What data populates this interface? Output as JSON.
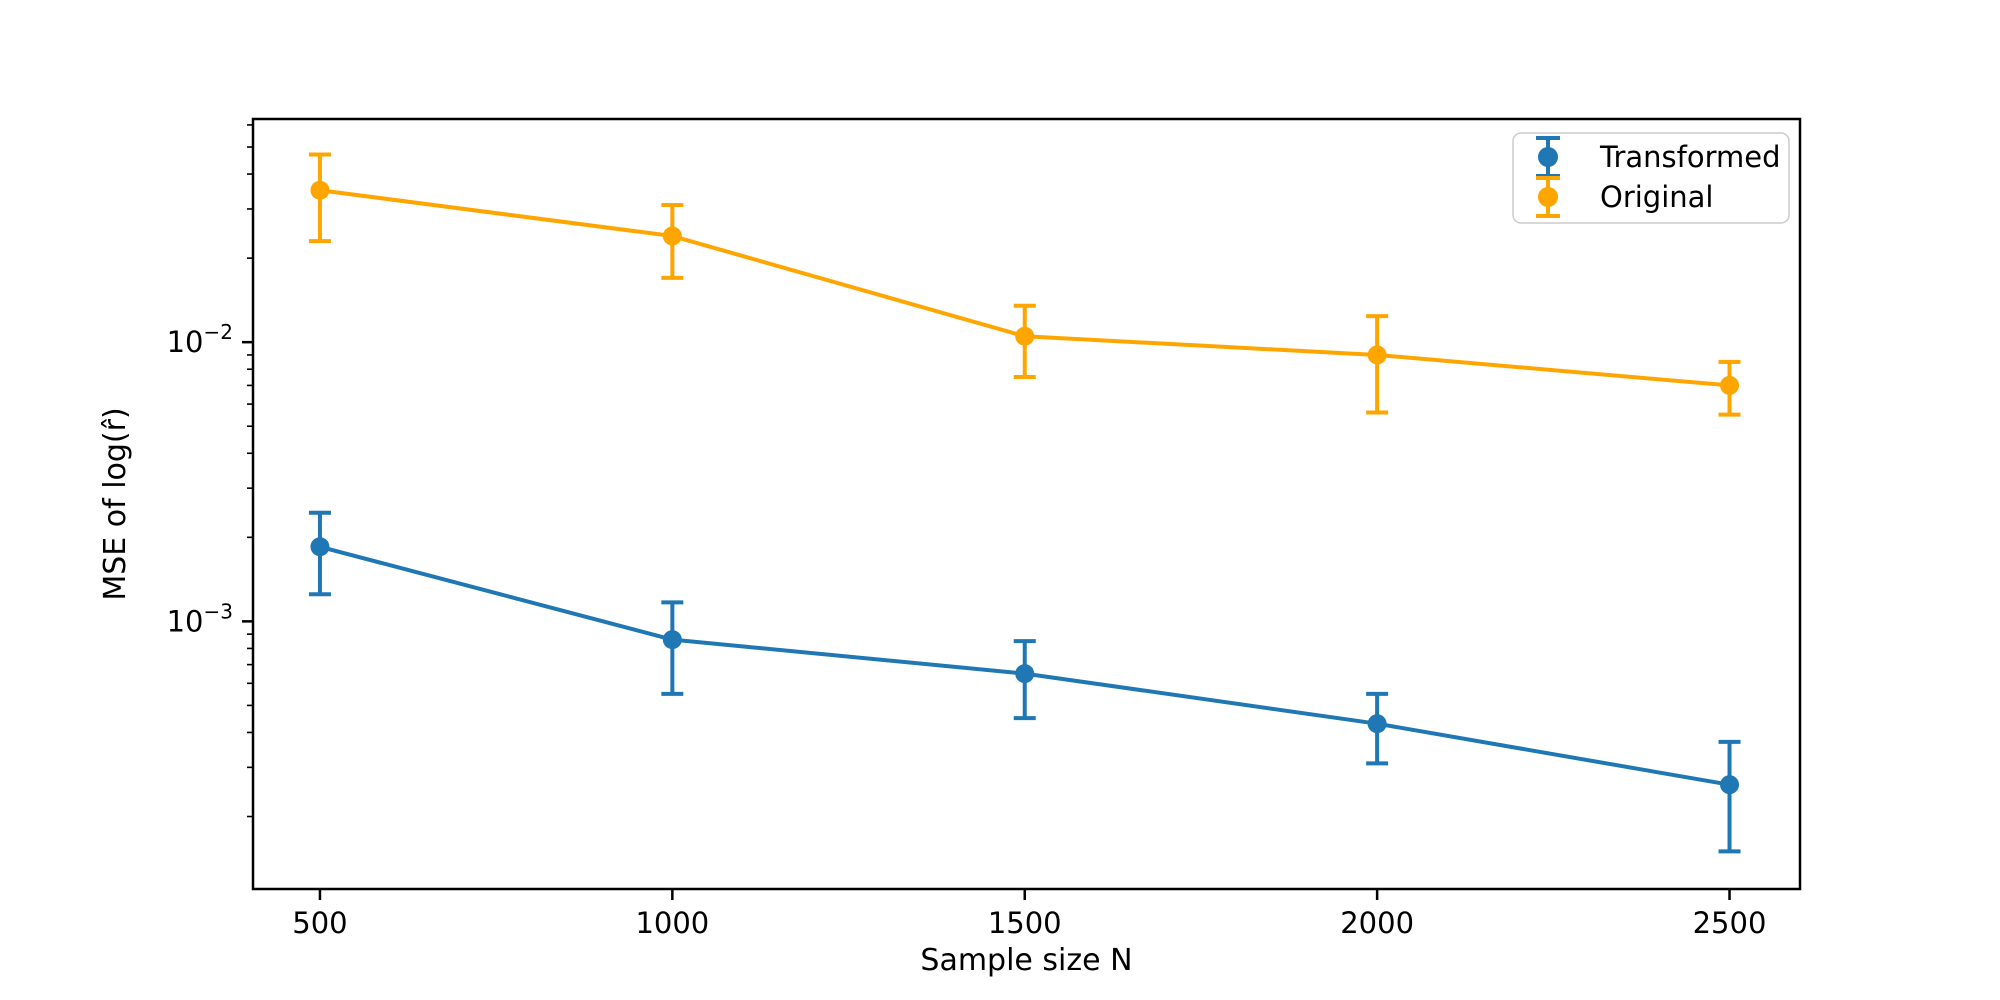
{
  "chart_data": {
    "type": "line",
    "title": "",
    "xlabel": "Sample size N",
    "ylabel": "MSE of log(r̂)",
    "yscale": "log",
    "grid": false,
    "legend_position": "upper right",
    "x": [
      500,
      1000,
      1500,
      2000,
      2500
    ],
    "xticks": [
      {
        "value": 500,
        "label": "500"
      },
      {
        "value": 1000,
        "label": "1000"
      },
      {
        "value": 1500,
        "label": "1500"
      },
      {
        "value": 2000,
        "label": "2000"
      },
      {
        "value": 2500,
        "label": "2500"
      }
    ],
    "yticks": [
      {
        "value": 0.01,
        "base": "10",
        "exp": "−2"
      },
      {
        "value": 0.001,
        "base": "10",
        "exp": "−3"
      }
    ],
    "xlim": [
      405,
      2600
    ],
    "ylim": [
      0.00011,
      0.063
    ],
    "series": [
      {
        "name": "Transformed",
        "color": "#1f77b4",
        "values": [
          0.00185,
          0.00086,
          0.00065,
          0.00043,
          0.00026
        ],
        "yerr": [
          0.0006,
          0.00031,
          0.0002,
          0.00012,
          0.00011
        ]
      },
      {
        "name": "Original",
        "color": "#ffa500",
        "values": [
          0.035,
          0.024,
          0.0105,
          0.009,
          0.007
        ],
        "yerr": [
          0.012,
          0.007,
          0.003,
          0.0034,
          0.0015
        ]
      }
    ],
    "axis_color": "#000000",
    "legend_border_color": "#cccccc"
  }
}
